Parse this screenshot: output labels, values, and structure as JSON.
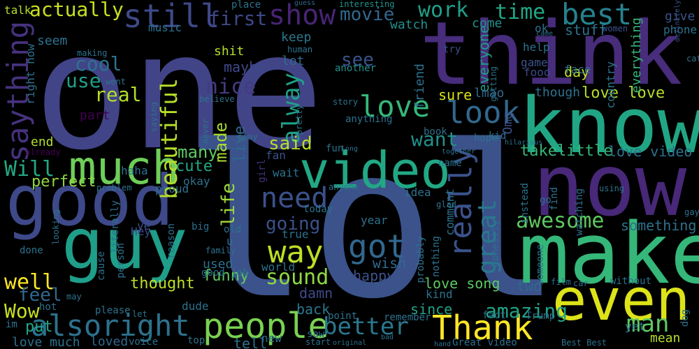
{
  "palette": {
    "background": "#000000",
    "purple": "#440154",
    "indigo": "#3b528b",
    "slate": "#414487",
    "blue": "#31688e",
    "teal": "#21918c",
    "sea": "#1f9e89",
    "green": "#35b779",
    "lime": "#6ece58",
    "yellow": "#fde725"
  },
  "words": [
    {
      "text": "one",
      "color": "#414487"
    },
    {
      "text": "lol",
      "color": "#3b528b"
    },
    {
      "text": "think",
      "color": "#472d7b"
    },
    {
      "text": "know",
      "color": "#21a685"
    },
    {
      "text": "now",
      "color": "#482878"
    },
    {
      "text": "make",
      "color": "#35b779"
    },
    {
      "text": "good",
      "color": "#3e4989"
    },
    {
      "text": "guy",
      "color": "#1f9e89"
    },
    {
      "text": "video",
      "color": "#22a884"
    },
    {
      "text": "much",
      "color": "#6ece58"
    },
    {
      "text": "even",
      "color": "#dde318"
    },
    {
      "text": "people",
      "color": "#7ad151"
    },
    {
      "text": "Thank",
      "color": "#fde725"
    },
    {
      "text": "alsoright",
      "color": "#2c728e"
    },
    {
      "text": "still",
      "color": "#3e4989"
    },
    {
      "text": "best",
      "color": "#26828e"
    },
    {
      "text": "show",
      "color": "#482475"
    },
    {
      "text": "look",
      "color": "#31688e"
    },
    {
      "text": "love",
      "color": "#35b779"
    },
    {
      "text": "saything",
      "color": "#46327e"
    },
    {
      "text": "beautiful",
      "color": "#b5de2b"
    },
    {
      "text": "really",
      "color": "#3b528b"
    },
    {
      "text": "great",
      "color": "#2a788e"
    },
    {
      "text": "got",
      "color": "#31688e"
    },
    {
      "text": "way",
      "color": "#bddf26"
    },
    {
      "text": "need",
      "color": "#3b528b"
    },
    {
      "text": "better",
      "color": "#2a788e"
    },
    {
      "text": "awesome",
      "color": "#5ec962"
    },
    {
      "text": "time",
      "color": "#21a685"
    },
    {
      "text": "work",
      "color": "#1fa088"
    },
    {
      "text": "actually",
      "color": "#c8e020"
    },
    {
      "text": "cool",
      "color": "#2c728e"
    },
    {
      "text": "use",
      "color": "#1fa088"
    },
    {
      "text": "real",
      "color": "#b5de2b"
    },
    {
      "text": "nice",
      "color": "#443a83"
    },
    {
      "text": "movie",
      "color": "#31688e"
    },
    {
      "text": "first",
      "color": "#3e4989"
    },
    {
      "text": "see",
      "color": "#3b528b"
    },
    {
      "text": "alway",
      "color": "#1fa088"
    },
    {
      "text": "want",
      "color": "#21918c"
    },
    {
      "text": "well",
      "color": "#fde725"
    },
    {
      "text": "Will",
      "color": "#22a884"
    },
    {
      "text": "feel",
      "color": "#31688e"
    },
    {
      "text": "Wow",
      "color": "#c8e020"
    },
    {
      "text": "sound",
      "color": "#8fd744"
    },
    {
      "text": "life",
      "color": "#a0da39"
    },
    {
      "text": "going",
      "color": "#3b528b"
    },
    {
      "text": "man",
      "color": "#5ec962"
    },
    {
      "text": "amazing",
      "color": "#20a386"
    },
    {
      "text": "something",
      "color": "#2c728e"
    },
    {
      "text": "love love",
      "color": "#b5de2b"
    },
    {
      "text": "love video",
      "color": "#2c728e"
    },
    {
      "text": "takelittle",
      "color": "#35b779"
    },
    {
      "text": "made",
      "color": "#aadc32"
    },
    {
      "text": "live",
      "color": "#31688e"
    },
    {
      "text": "said",
      "color": "#b5de2b"
    },
    {
      "text": "cute",
      "color": "#22a884"
    },
    {
      "text": "many",
      "color": "#5ec962"
    },
    {
      "text": "perfect",
      "color": "#90d743"
    },
    {
      "text": "funny",
      "color": "#5ec962"
    },
    {
      "text": "thought",
      "color": "#bddf26"
    },
    {
      "text": "put",
      "color": "#22a884"
    },
    {
      "text": "love much",
      "color": "#2c728e"
    },
    {
      "text": "loved",
      "color": "#31688e"
    },
    {
      "text": "tell",
      "color": "#2c728e"
    },
    {
      "text": "happy",
      "color": "#3b528b"
    },
    {
      "text": "wish",
      "color": "#31688e"
    },
    {
      "text": "back",
      "color": "#2a788e"
    },
    {
      "text": "damn",
      "color": "#3e4989"
    },
    {
      "text": "love song",
      "color": "#5ec962"
    },
    {
      "text": "since",
      "color": "#20a386"
    },
    {
      "text": "two",
      "color": "#31688e"
    },
    {
      "text": "Omg",
      "color": "#3b528b"
    },
    {
      "text": "everyone",
      "color": "#1f9e89"
    },
    {
      "text": "friend",
      "color": "#2c728e"
    },
    {
      "text": "sure",
      "color": "#d8e219"
    },
    {
      "text": "lmao",
      "color": "#31688e"
    },
    {
      "text": "though",
      "color": "#2c728e"
    },
    {
      "text": "day",
      "color": "#bddf26"
    },
    {
      "text": "stuff",
      "color": "#2c728e"
    },
    {
      "text": "watch",
      "color": "#21918c"
    },
    {
      "text": "keep",
      "color": "#2a788e"
    },
    {
      "text": "lot",
      "color": "#31688e"
    },
    {
      "text": "another",
      "color": "#21918c"
    },
    {
      "text": "maybe",
      "color": "#3e4989"
    },
    {
      "text": "shit",
      "color": "#b5de2b"
    },
    {
      "text": "right now",
      "color": "#2c728e"
    },
    {
      "text": "end",
      "color": "#b5de2b"
    },
    {
      "text": "part",
      "color": "#440154"
    },
    {
      "text": "seem",
      "color": "#2c728e"
    },
    {
      "text": "music",
      "color": "#2c728e"
    },
    {
      "text": "making",
      "color": "#2c728e"
    },
    {
      "text": "talk",
      "color": "#b5de2b"
    },
    {
      "text": "come",
      "color": "#21918c"
    },
    {
      "text": "ok",
      "color": "#2c728e"
    },
    {
      "text": "give",
      "color": "#3b528b"
    },
    {
      "text": "phone",
      "color": "#2c728e"
    },
    {
      "text": "everything",
      "color": "#35b779"
    },
    {
      "text": "help",
      "color": "#2c728e"
    },
    {
      "text": "game",
      "color": "#3b528b"
    },
    {
      "text": "food",
      "color": "#3e4989"
    },
    {
      "text": "face",
      "color": "#2c728e"
    },
    {
      "text": "country",
      "color": "#2c728e"
    },
    {
      "text": "women",
      "color": "#3b528b"
    },
    {
      "text": "try",
      "color": "#3b528b"
    },
    {
      "text": "guess",
      "color": "#31688e"
    },
    {
      "text": "interesting",
      "color": "#21918c"
    },
    {
      "text": "place",
      "color": "#2c728e"
    },
    {
      "text": "definitely",
      "color": "#3b528b"
    },
    {
      "text": "human",
      "color": "#2c728e"
    },
    {
      "text": "already",
      "color": "#440154"
    },
    {
      "text": "haha",
      "color": "#2c728e"
    },
    {
      "text": "Hey",
      "color": "#3e4989"
    },
    {
      "text": "ye",
      "color": "#3b528b"
    },
    {
      "text": "problem",
      "color": "#2c728e"
    },
    {
      "text": "proud",
      "color": "#2c728e"
    },
    {
      "text": "okay",
      "color": "#2c728e"
    },
    {
      "text": "girl",
      "color": "#46327e"
    },
    {
      "text": "fan",
      "color": "#3b528b"
    },
    {
      "text": "wait",
      "color": "#2c728e"
    },
    {
      "text": "true",
      "color": "#2c728e"
    },
    {
      "text": "u",
      "color": "#2c728e"
    },
    {
      "text": "used",
      "color": "#2c728e"
    },
    {
      "text": "good job",
      "color": "#2c728e"
    },
    {
      "text": "world",
      "color": "#2c728e"
    },
    {
      "text": "dude",
      "color": "#2c728e"
    },
    {
      "text": "hot",
      "color": "#2c728e"
    },
    {
      "text": "im",
      "color": "#2c728e"
    },
    {
      "text": "done",
      "color": "#2c728e"
    },
    {
      "text": "looking",
      "color": "#2c728e"
    },
    {
      "text": "big",
      "color": "#2c728e"
    },
    {
      "text": "reason",
      "color": "#2c728e"
    },
    {
      "text": "person",
      "color": "#2c728e"
    },
    {
      "text": "cause",
      "color": "#2c728e"
    },
    {
      "text": "please",
      "color": "#2c728e"
    },
    {
      "text": "voice",
      "color": "#2c728e"
    },
    {
      "text": "top",
      "color": "#2c728e"
    },
    {
      "text": "new",
      "color": "#2c728e"
    },
    {
      "text": "start",
      "color": "#2c728e"
    },
    {
      "text": "original",
      "color": "#2c728e"
    },
    {
      "text": "saw",
      "color": "#2c728e"
    },
    {
      "text": "remember",
      "color": "#2c728e"
    },
    {
      "text": "point",
      "color": "#2c728e"
    },
    {
      "text": "kind",
      "color": "#2c728e"
    },
    {
      "text": "fact",
      "color": "#2c728e"
    },
    {
      "text": "Trump",
      "color": "#2c728e"
    },
    {
      "text": "Great video",
      "color": "#2c728e"
    },
    {
      "text": "Best Best",
      "color": "#2c728e"
    },
    {
      "text": "mean",
      "color": "#b5de2b"
    },
    {
      "text": "yet",
      "color": "#2c728e"
    },
    {
      "text": "dog",
      "color": "#2c728e"
    },
    {
      "text": "without",
      "color": "#2c728e"
    },
    {
      "text": "car",
      "color": "#2c728e"
    },
    {
      "text": "film",
      "color": "#2c728e"
    },
    {
      "text": "watching",
      "color": "#2c728e"
    },
    {
      "text": "find",
      "color": "#2c728e"
    },
    {
      "text": "someone",
      "color": "#2c728e"
    },
    {
      "text": "honestly",
      "color": "#2c728e"
    },
    {
      "text": "instead",
      "color": "#2c728e"
    },
    {
      "text": "go",
      "color": "#2c728e"
    },
    {
      "text": "using",
      "color": "#2c728e"
    },
    {
      "text": "gay",
      "color": "#2c728e"
    },
    {
      "text": "cat",
      "color": "#2c728e"
    },
    {
      "text": "came",
      "color": "#2c728e"
    },
    {
      "text": "hilarious",
      "color": "#2c728e"
    },
    {
      "text": "together",
      "color": "#2c728e"
    },
    {
      "text": "hope",
      "color": "#2c728e"
    },
    {
      "text": "kid",
      "color": "#2c728e"
    },
    {
      "text": "book",
      "color": "#2c728e"
    },
    {
      "text": "fun",
      "color": "#2c728e"
    },
    {
      "text": "long",
      "color": "#2c728e"
    },
    {
      "text": "name",
      "color": "#2c728e"
    },
    {
      "text": "idea",
      "color": "#2c728e"
    },
    {
      "text": "glad",
      "color": "#2c728e"
    },
    {
      "text": "comment",
      "color": "#2c728e"
    },
    {
      "text": "nothing",
      "color": "#2c728e"
    },
    {
      "text": "probably",
      "color": "#2c728e"
    },
    {
      "text": "year",
      "color": "#2c728e"
    },
    {
      "text": "today",
      "color": "#2c728e"
    },
    {
      "text": "anyone",
      "color": "#2c728e"
    },
    {
      "text": "old",
      "color": "#2c728e"
    },
    {
      "text": "family",
      "color": "#2c728e"
    },
    {
      "text": "literally",
      "color": "#2c728e"
    },
    {
      "text": "saying",
      "color": "#2c728e"
    },
    {
      "text": "went",
      "color": "#2c728e"
    },
    {
      "text": "believe",
      "color": "#2c728e"
    },
    {
      "text": "never",
      "color": "#2c728e"
    },
    {
      "text": "play",
      "color": "#2c728e"
    },
    {
      "text": "pretty",
      "color": "#2c728e"
    },
    {
      "text": "anything",
      "color": "#2c728e"
    },
    {
      "text": "story",
      "color": "#2c728e"
    },
    {
      "text": "getting",
      "color": "#2c728e"
    },
    {
      "text": "may",
      "color": "#2c728e"
    },
    {
      "text": "let",
      "color": "#2c728e"
    },
    {
      "text": "bad",
      "color": "#2c728e"
    },
    {
      "text": "hand",
      "color": "#2c728e"
    }
  ]
}
